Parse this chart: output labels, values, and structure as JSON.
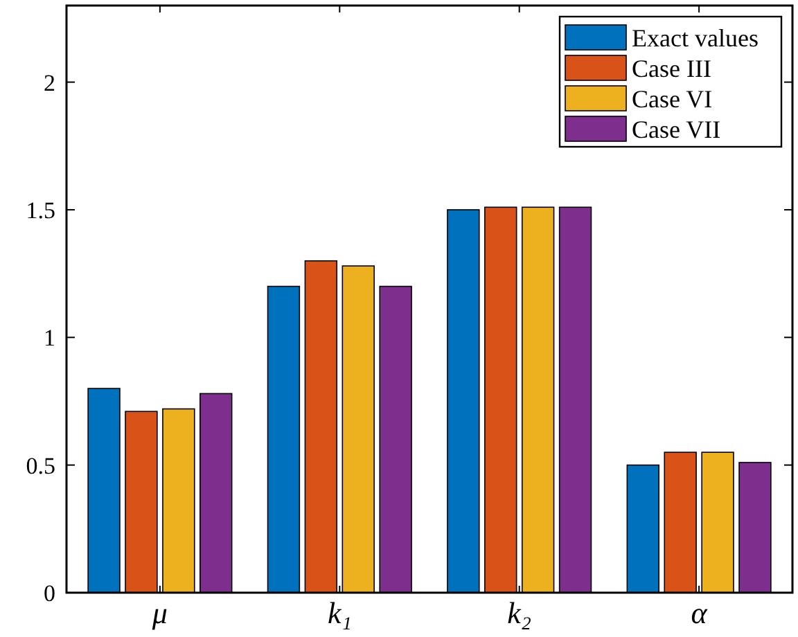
{
  "chart_data": {
    "type": "bar",
    "categories": [
      "μ",
      "k₁",
      "k₂",
      "α"
    ],
    "series": [
      {
        "name": "Exact values",
        "color": "#0072bd",
        "values": [
          0.8,
          1.2,
          1.5,
          0.5
        ]
      },
      {
        "name": "Case III",
        "color": "#d95319",
        "values": [
          0.71,
          1.3,
          1.51,
          0.55
        ]
      },
      {
        "name": "Case VI",
        "color": "#edb120",
        "values": [
          0.72,
          1.28,
          1.51,
          0.55
        ]
      },
      {
        "name": "Case VII",
        "color": "#7e2f8e",
        "values": [
          0.78,
          1.2,
          1.51,
          0.51
        ]
      }
    ],
    "ylim": [
      0,
      2.3
    ],
    "yticks": [
      0,
      0.5,
      1,
      1.5,
      2
    ],
    "legend": "top right"
  }
}
